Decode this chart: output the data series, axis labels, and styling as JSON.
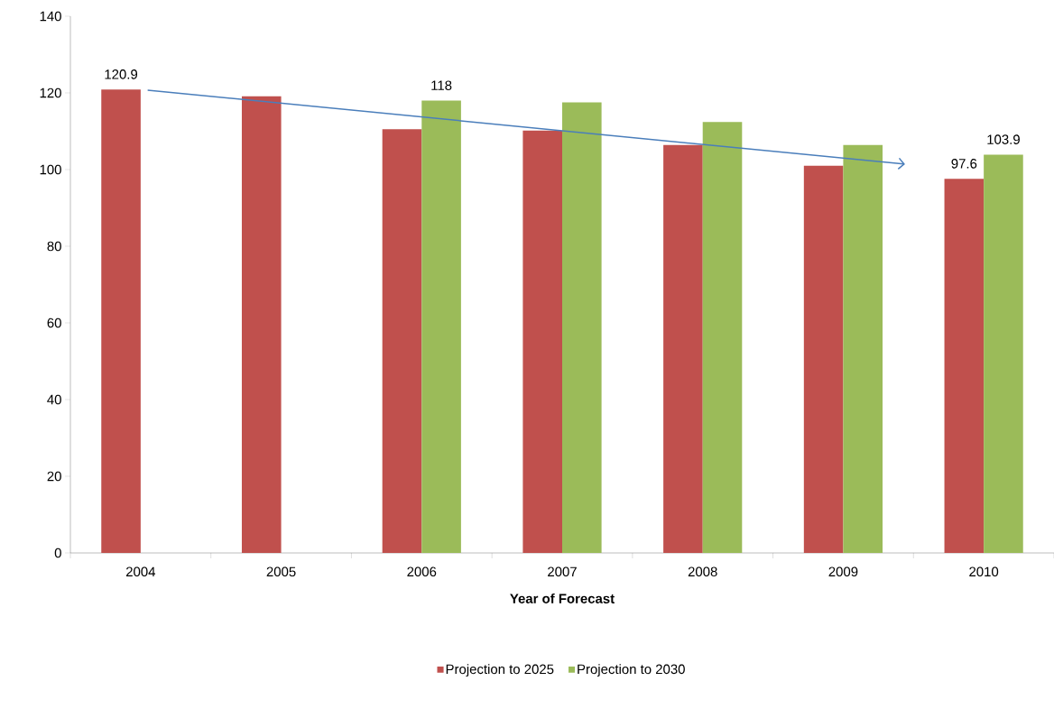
{
  "chart_data": {
    "type": "bar",
    "xlabel": "Year of Forecast",
    "categories": [
      "2004",
      "2005",
      "2006",
      "2007",
      "2008",
      "2009",
      "2010"
    ],
    "series": [
      {
        "name": "Projection to 2025",
        "color": "#c0504d",
        "values": [
          120.9,
          119.1,
          110.5,
          110.2,
          106.4,
          101.0,
          97.6
        ],
        "value_labels": [
          "120.9",
          null,
          null,
          null,
          null,
          null,
          "97.6"
        ]
      },
      {
        "name": "Projection to 2030",
        "color": "#9bbb59",
        "values": [
          null,
          null,
          118,
          117.5,
          112.4,
          106.4,
          103.9
        ],
        "value_labels": [
          null,
          null,
          "118",
          null,
          null,
          null,
          "103.9"
        ]
      }
    ],
    "ylim": [
      0,
      140
    ],
    "yticks": [
      0,
      20,
      40,
      60,
      80,
      100,
      120,
      140
    ],
    "grid": false,
    "legend": "bottom"
  }
}
